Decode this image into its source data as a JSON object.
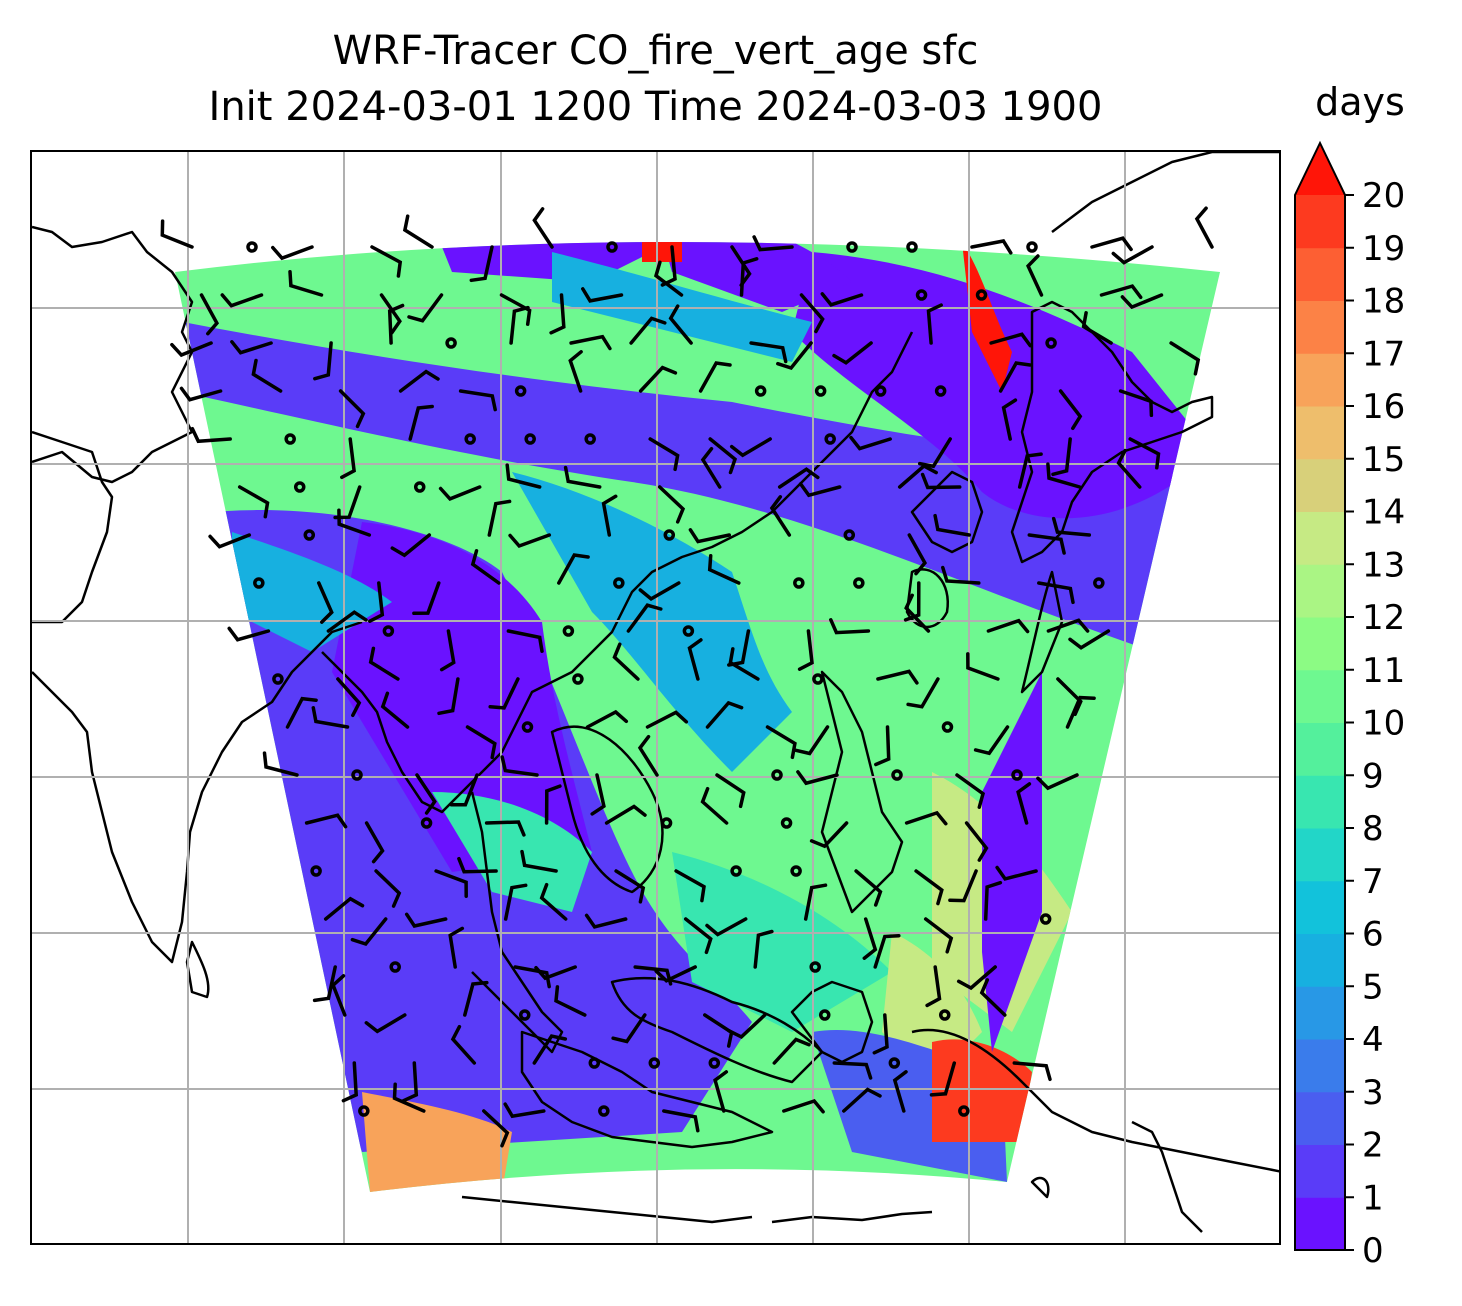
{
  "title": {
    "line1": "WRF-Tracer CO_fire_vert_age sfc",
    "line2": "Init 2024-03-01 1200 Time 2024-03-03 1900"
  },
  "colorbar": {
    "unit": "days",
    "ticks": [
      "0",
      "1",
      "2",
      "3",
      "4",
      "5",
      "6",
      "7",
      "8",
      "9",
      "10",
      "11",
      "12",
      "13",
      "14",
      "15",
      "16",
      "17",
      "18",
      "19",
      "20"
    ],
    "extend": "max",
    "colors": [
      "#6a12ff",
      "#5a3cf8",
      "#4a5ef0",
      "#3a7ceb",
      "#2898e6",
      "#17b0e0",
      "#12c2db",
      "#22d6c8",
      "#38e6b0",
      "#54f09c",
      "#6ef890",
      "#8cfb84",
      "#aaf584",
      "#c6ea84",
      "#d8d07a",
      "#eebe6c",
      "#f8a35a",
      "#fc8246",
      "#fd5f33",
      "#fd3a1f",
      "#ff1508"
    ]
  },
  "map": {
    "gridlines": true,
    "coastlines": true,
    "field": "CO_fire_vert_age",
    "wind_barbs": true
  }
}
